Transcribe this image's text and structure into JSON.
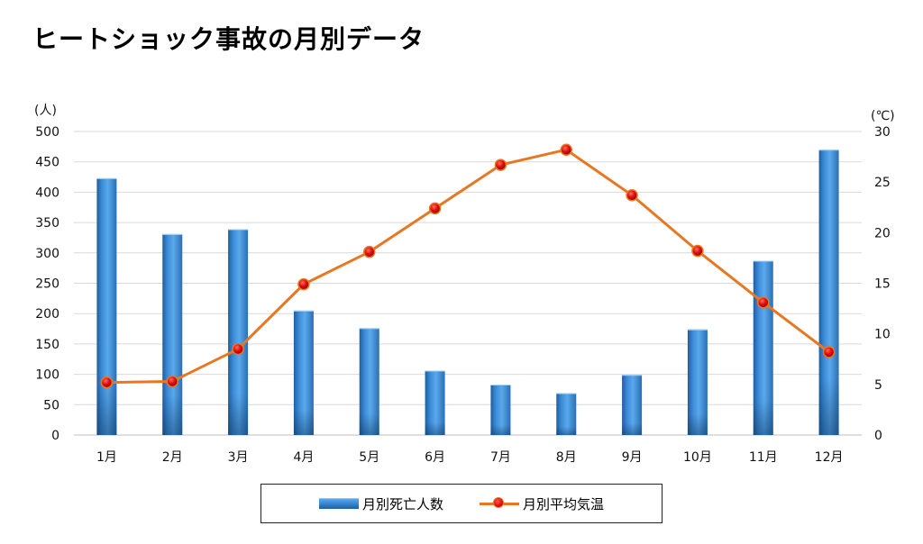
{
  "title": "ヒートショック事故の月別データ",
  "chart_data": {
    "type": "bar+line",
    "title": "ヒートショック事故の月別データ",
    "categories": [
      "1月",
      "2月",
      "3月",
      "4月",
      "5月",
      "6月",
      "7月",
      "8月",
      "9月",
      "10月",
      "11月",
      "12月"
    ],
    "y_left": {
      "unit_label": "(人)",
      "range": [
        0,
        500
      ],
      "ticks": [
        0,
        50,
        100,
        150,
        200,
        250,
        300,
        350,
        400,
        450,
        500
      ]
    },
    "y_right": {
      "unit_label": "(℃)",
      "range": [
        0,
        30
      ],
      "ticks": [
        0,
        5,
        10,
        15,
        20,
        25,
        30
      ]
    },
    "grid": true,
    "legend_position": "bottom",
    "series": [
      {
        "name": "月別死亡人数",
        "type": "bar",
        "axis": "left",
        "color": "#3a88d4",
        "values": [
          423,
          331,
          339,
          205,
          176,
          106,
          83,
          69,
          99,
          174,
          287,
          470
        ]
      },
      {
        "name": "月別平均気温",
        "type": "line",
        "axis": "right",
        "color": "#e87722",
        "marker_color": "#e01010",
        "values": [
          5.2,
          5.3,
          8.5,
          14.9,
          18.1,
          22.4,
          26.7,
          28.2,
          23.7,
          18.2,
          13.1,
          8.2
        ]
      }
    ]
  }
}
